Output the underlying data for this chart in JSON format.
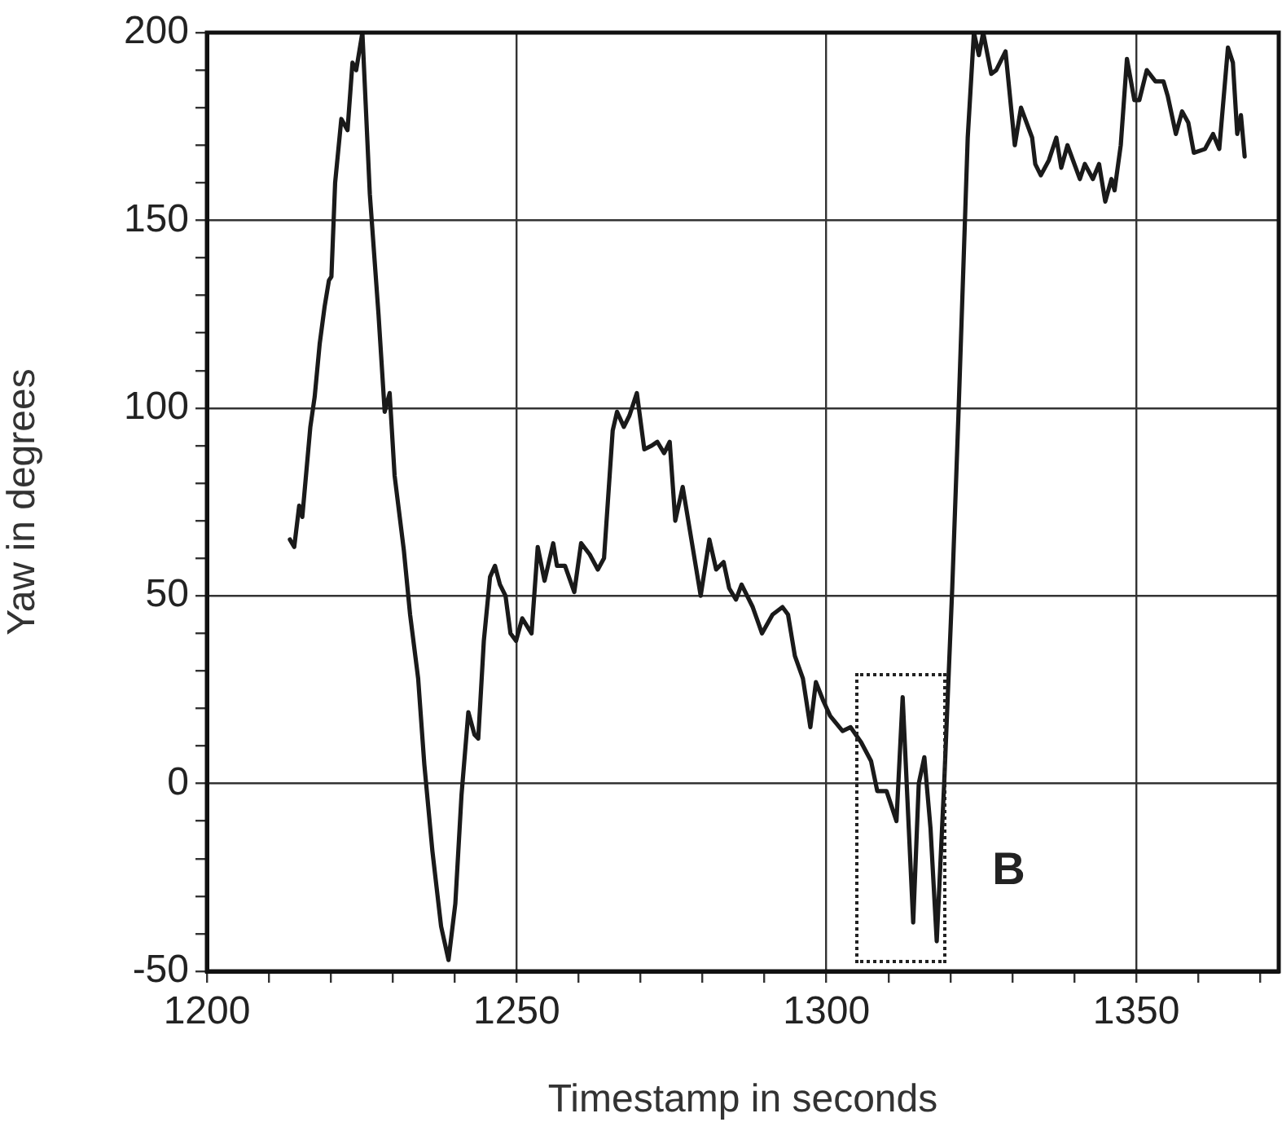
{
  "chart_data": {
    "type": "line",
    "xlabel": "Timestamp in seconds",
    "ylabel": "Yaw in degrees",
    "xlim": [
      1200,
      1373
    ],
    "ylim": [
      -50,
      200
    ],
    "xticks": [
      1200,
      {
        "value": 1210,
        "label": null
      },
      {
        "value": 1220,
        "label": null
      },
      {
        "value": 1230,
        "label": null
      },
      {
        "value": 1240,
        "label": null
      },
      1250,
      {
        "value": 1260,
        "label": null
      },
      {
        "value": 1270,
        "label": null
      },
      {
        "value": 1280,
        "label": null
      },
      {
        "value": 1290,
        "label": null
      },
      1300,
      {
        "value": 1310,
        "label": null
      },
      {
        "value": 1320,
        "label": null
      },
      {
        "value": 1330,
        "label": null
      },
      {
        "value": 1340,
        "label": null
      },
      1350,
      {
        "value": 1360,
        "label": null
      },
      {
        "value": 1370,
        "label": null
      }
    ],
    "yticks": [
      -50,
      {
        "value": -40,
        "label": null
      },
      {
        "value": -30,
        "label": null
      },
      {
        "value": -20,
        "label": null
      },
      {
        "value": -10,
        "label": null
      },
      0,
      {
        "value": 10,
        "label": null
      },
      {
        "value": 20,
        "label": null
      },
      {
        "value": 30,
        "label": null
      },
      {
        "value": 40,
        "label": null
      },
      50,
      {
        "value": 60,
        "label": null
      },
      {
        "value": 70,
        "label": null
      },
      {
        "value": 80,
        "label": null
      },
      {
        "value": 90,
        "label": null
      },
      100,
      {
        "value": 110,
        "label": null
      },
      {
        "value": 120,
        "label": null
      },
      {
        "value": 130,
        "label": null
      },
      {
        "value": 140,
        "label": null
      },
      150,
      {
        "value": 160,
        "label": null
      },
      {
        "value": 170,
        "label": null
      },
      {
        "value": 180,
        "label": null
      },
      {
        "value": 190,
        "label": null
      },
      200
    ],
    "grid": true,
    "marker": "none",
    "line_style": "solid",
    "annotations": [
      "B"
    ],
    "series": [
      {
        "color": "#1a1a1a",
        "x": [
          1213.4,
          1214.1,
          1214.9,
          1215.4,
          1216.7,
          1217.4,
          1218.2,
          1219,
          1219.7,
          1220.1,
          1220.7,
          1221.7,
          1222.7,
          1223.5,
          1224.1,
          1225.1,
          1226.3,
          1227.7,
          1228.7,
          1229.5,
          1230.3,
          1231.8,
          1232.8,
          1234.1,
          1235.1,
          1236.4,
          1237.8,
          1239,
          1240.1,
          1241.1,
          1242.2,
          1243.2,
          1243.8,
          1244.7,
          1245.7,
          1246.5,
          1247.3,
          1248.2,
          1249,
          1249.9,
          1250.9,
          1252.4,
          1253.4,
          1254.5,
          1255.9,
          1256.5,
          1257.8,
          1259.3,
          1260.4,
          1261.8,
          1263.1,
          1264.1,
          1265.5,
          1266.2,
          1267.3,
          1268.2,
          1269.4,
          1270.6,
          1271.8,
          1272.7,
          1273.8,
          1274.7,
          1275.6,
          1276.8,
          1278,
          1279.7,
          1281.1,
          1282.2,
          1283.4,
          1284.3,
          1285.4,
          1286.3,
          1288.1,
          1289.6,
          1291.3,
          1292.9,
          1293.8,
          1294.9,
          1296.2,
          1297.4,
          1298.3,
          1299.5,
          1300.6,
          1302.6,
          1303.9,
          1305.6,
          1307.2,
          1308.2,
          1309.7,
          1311.3,
          1312.3,
          1314,
          1314.9,
          1315.8,
          1316.8,
          1317.8,
          1319,
          1320.3,
          1321.3,
          1322.8,
          1323.8,
          1324.6,
          1325.3,
          1326.6,
          1327.4,
          1328.9,
          1330.4,
          1331.4,
          1333.2,
          1333.7,
          1334.6,
          1335.9,
          1337.1,
          1337.9,
          1338.9,
          1340.9,
          1341.7,
          1343,
          1344,
          1345,
          1346,
          1346.5,
          1347.5,
          1348.5,
          1349.7,
          1350.5,
          1351.7,
          1353.1,
          1354.4,
          1355.1,
          1356.4,
          1357.4,
          1358.4,
          1359.3,
          1361.1,
          1362.4,
          1363.4,
          1364.8,
          1365.6,
          1366.3,
          1366.9,
          1367.5
        ],
        "values": [
          65,
          63,
          74,
          71,
          95,
          103,
          117,
          127,
          134,
          135,
          160,
          177,
          174,
          192,
          190,
          200,
          157,
          125,
          99,
          104,
          82,
          62,
          45,
          28,
          5,
          -18,
          -38,
          -47,
          -32,
          -3,
          19,
          13,
          12,
          38,
          55,
          58,
          53,
          50,
          40,
          38,
          44,
          40,
          63,
          54,
          64,
          58,
          58,
          51,
          64,
          61,
          57,
          60,
          94,
          99,
          95,
          98,
          104,
          89,
          90,
          91,
          88,
          91,
          70,
          79,
          67,
          50,
          65,
          57,
          59,
          52,
          49,
          53,
          47,
          40,
          45,
          47,
          45,
          34,
          28,
          15,
          27,
          22,
          18,
          14,
          15,
          11,
          6,
          -2,
          -2,
          -10,
          23,
          -37,
          0,
          7,
          -12,
          -42,
          0,
          52,
          98,
          172,
          200,
          194,
          200,
          189,
          190,
          195,
          170,
          180,
          172,
          165,
          162,
          166,
          172,
          164,
          170,
          161,
          165,
          161,
          165,
          155,
          161,
          158,
          170,
          193,
          182,
          182,
          190,
          187,
          187,
          183,
          173,
          179,
          176,
          168,
          169,
          173,
          169,
          196,
          192,
          173,
          178,
          167
        ]
      }
    ]
  }
}
